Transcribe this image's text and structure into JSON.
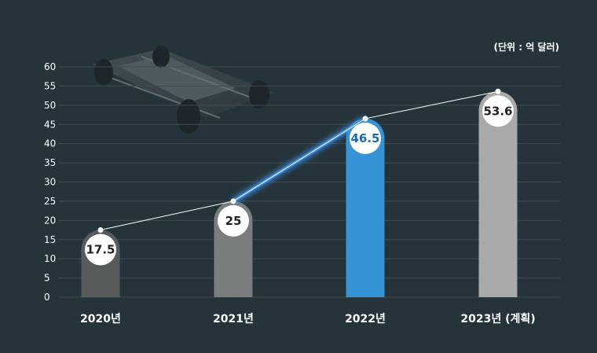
{
  "chart_data": {
    "type": "bar",
    "unit_label": "(단위 : 억 달러)",
    "categories": [
      "2020년",
      "2021년",
      "2022년",
      "2023년 (계획)"
    ],
    "values": [
      17.5,
      25,
      46.5,
      53.6
    ],
    "value_labels": [
      "17.5",
      "25",
      "46.5",
      "53.6"
    ],
    "yticks": [
      "0",
      "5",
      "10",
      "15",
      "20",
      "25",
      "30",
      "35",
      "40",
      "45",
      "50",
      "55",
      "60"
    ],
    "ylim": [
      0,
      60
    ],
    "grid": true,
    "trend_line": true,
    "bar_colors": [
      "#575b5c",
      "#7a7d7e",
      "#3494d6",
      "#a8a9a9"
    ],
    "label_colors": [
      "#222222",
      "#222222",
      "#1c69b3",
      "#222222"
    ],
    "highlight_index": 2,
    "highlight_color": "#3c8ee8",
    "background_color": "#25343a"
  }
}
